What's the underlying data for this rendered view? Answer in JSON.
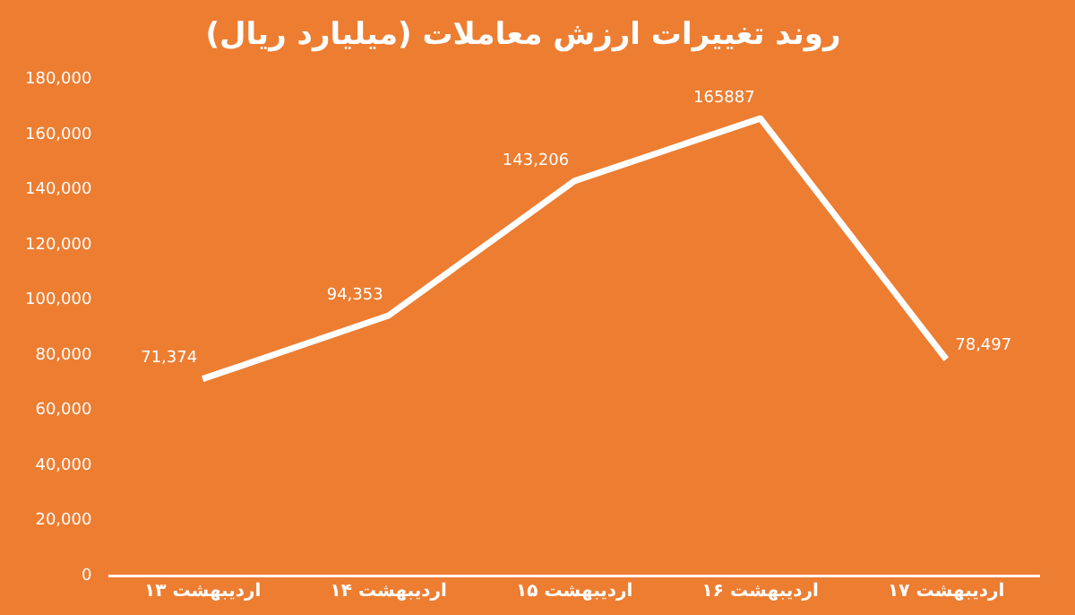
{
  "chart_data": {
    "type": "line",
    "title": "روند تغییرات ارزش معاملات (میلیارد ریال)",
    "categories": [
      "۱۳ اردیبهشت",
      "۱۴ اردیبهشت",
      "۱۵ اردیبهشت",
      "۱۶ اردیبهشت",
      "۱۷ اردیبهشت"
    ],
    "series": [
      {
        "color": "#ffffff",
        "values": [
          71374,
          94353,
          143206,
          165887,
          78497
        ],
        "value_labels": [
          "71,374",
          "94,353",
          "143,206",
          "165887",
          "78,497"
        ]
      }
    ],
    "ylim": [
      0,
      180000
    ],
    "yticks": [
      0,
      {
        "value": 20000,
        "label": "20,000"
      },
      {
        "value": 40000,
        "label": "40,000"
      },
      {
        "value": 60000,
        "label": "60,000"
      },
      {
        "value": 80000,
        "label": "80,000"
      },
      {
        "value": 100000,
        "label": "100,000"
      },
      {
        "value": 120000,
        "label": "120,000"
      },
      {
        "value": 140000,
        "label": "140,000"
      },
      {
        "value": 160000,
        "label": "160,000"
      },
      {
        "value": 180000,
        "label": "180,000"
      }
    ],
    "grid": false,
    "legend": false,
    "marker": "none",
    "line_style": "solid"
  }
}
